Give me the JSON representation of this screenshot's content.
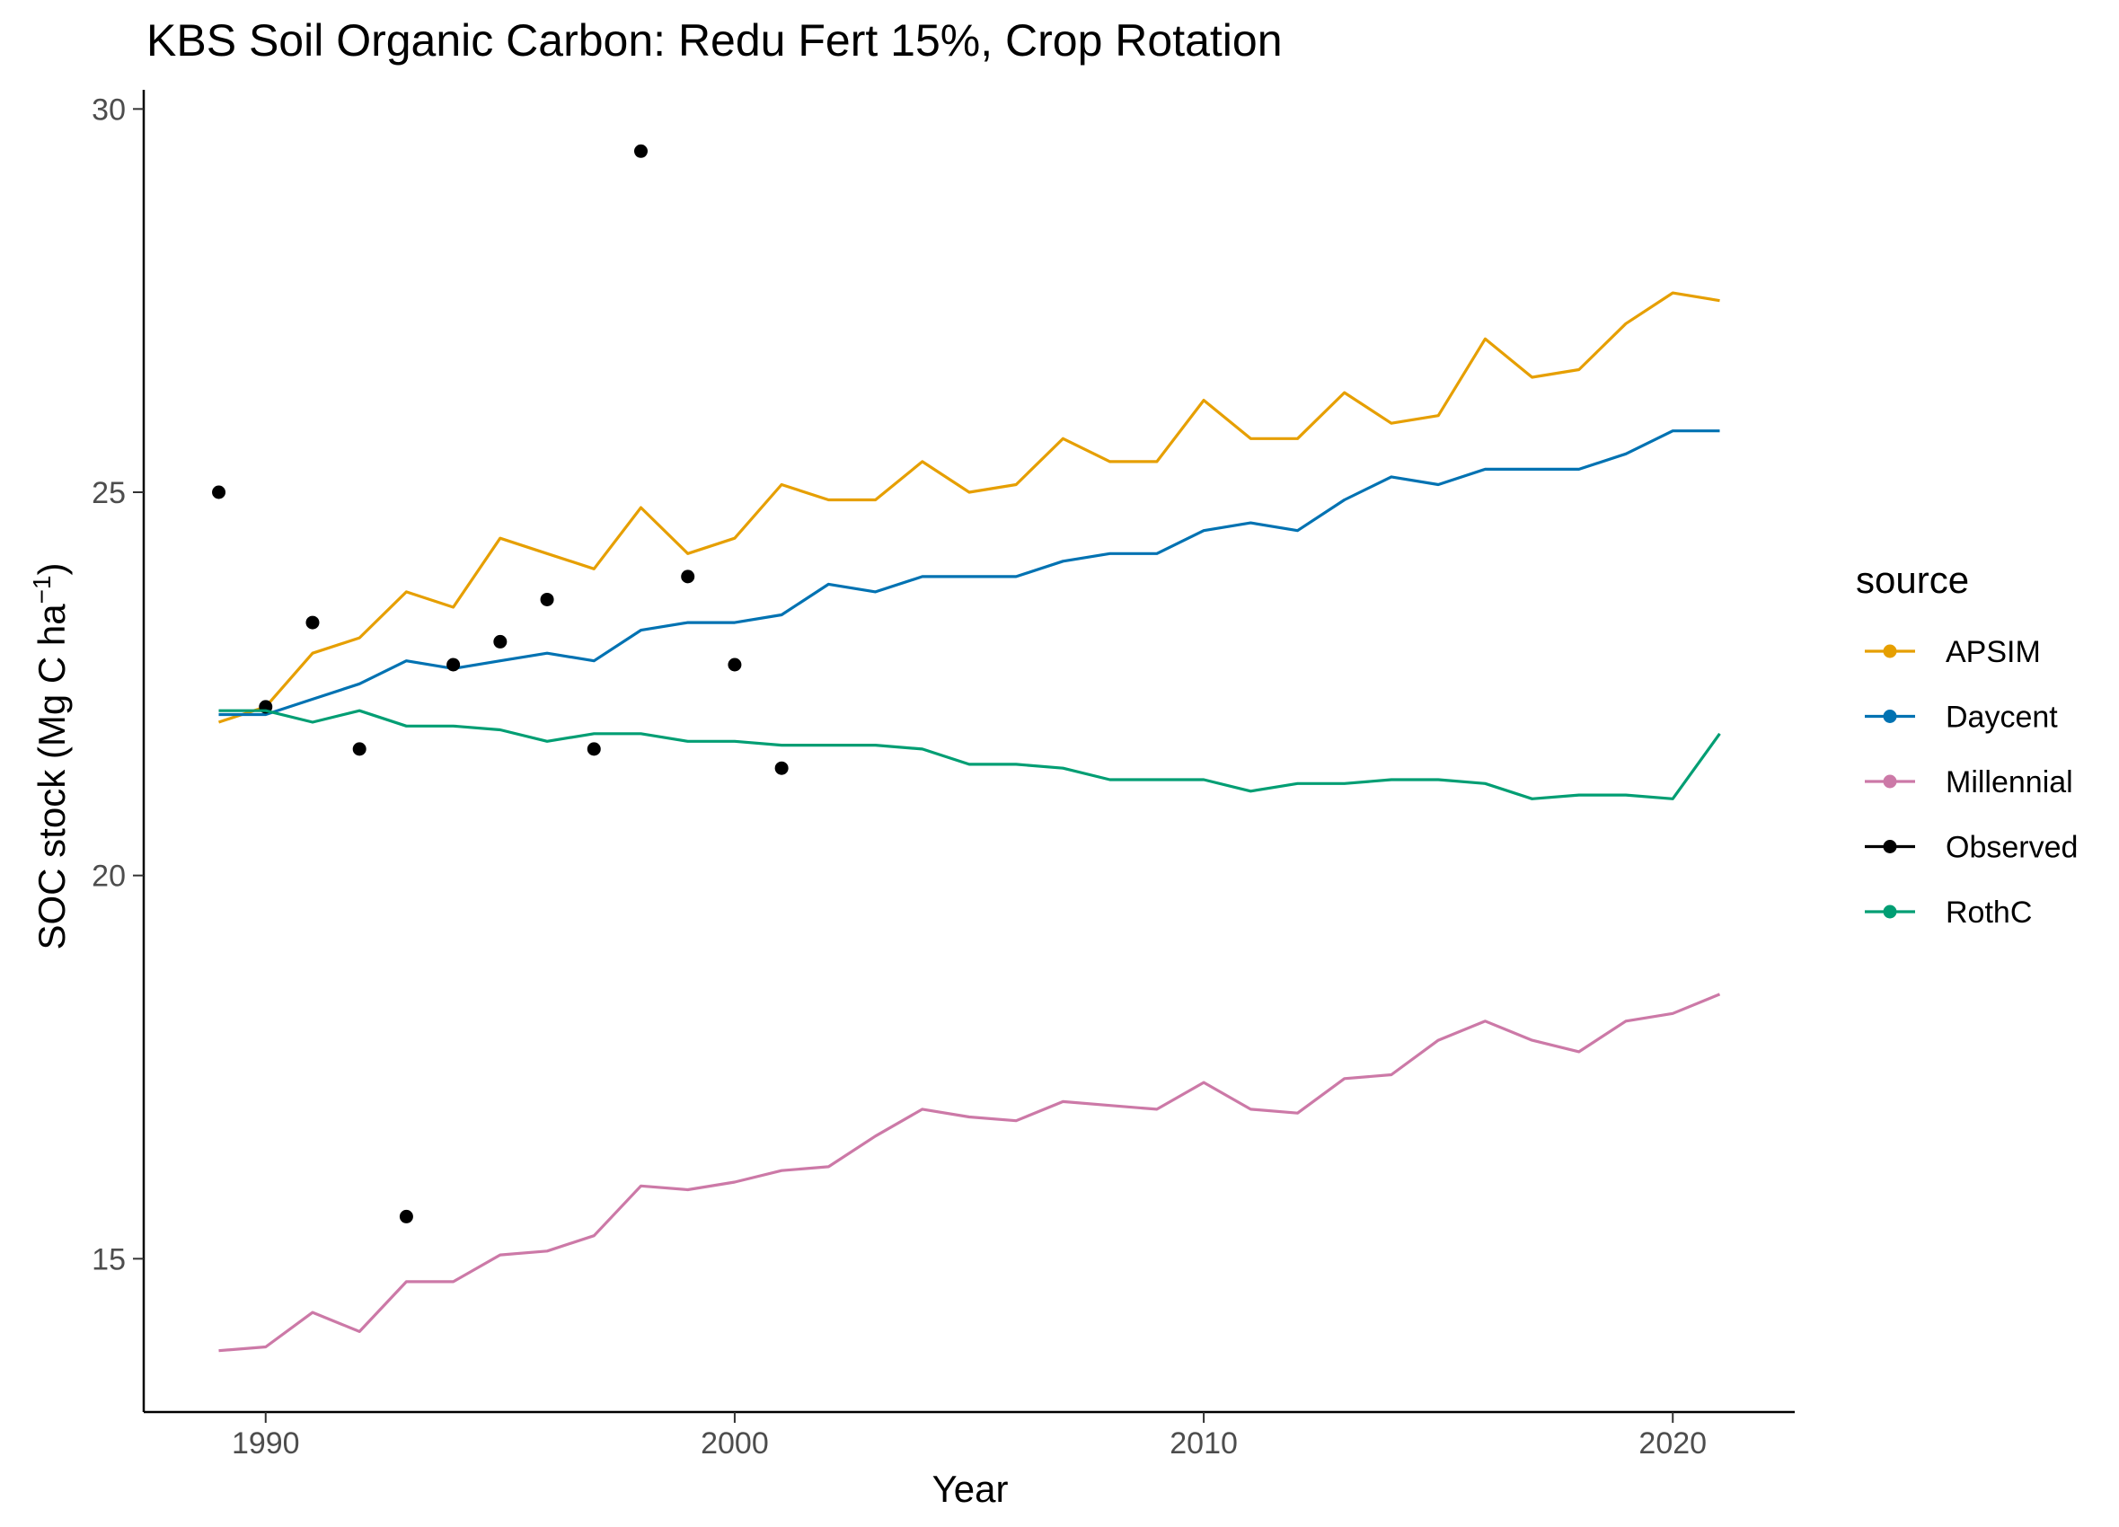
{
  "chart_data": {
    "type": "line",
    "title": "KBS Soil Organic Carbon:  Redu Fert 15%, Crop Rotation",
    "xlabel": "Year",
    "ylabel_main": "SOC stock (Mg C ha",
    "ylabel_sup": "−1",
    "ylabel_close": ")",
    "xlim": [
      1987.4,
      2022.6
    ],
    "ylim": [
      13.0,
      30.25
    ],
    "xticks": [
      1990,
      2000,
      2010,
      2020
    ],
    "yticks": [
      15,
      20,
      25,
      30
    ],
    "grid": false,
    "legend": {
      "title": "source",
      "position": "right",
      "entries": [
        "APSIM",
        "Daycent",
        "Millennial",
        "Observed",
        "RothC"
      ]
    },
    "series": [
      {
        "name": "APSIM",
        "color": "#E69F00",
        "kind": "line",
        "x": [
          1989,
          1990,
          1991,
          1992,
          1993,
          1994,
          1995,
          1996,
          1997,
          1998,
          1999,
          2000,
          2001,
          2002,
          2003,
          2004,
          2005,
          2006,
          2007,
          2008,
          2009,
          2010,
          2011,
          2012,
          2013,
          2014,
          2015,
          2016,
          2017,
          2018,
          2019,
          2020,
          2021
        ],
        "y": [
          22.0,
          22.2,
          22.9,
          23.1,
          23.7,
          23.5,
          24.4,
          24.2,
          24.0,
          24.8,
          24.2,
          24.4,
          25.1,
          24.9,
          24.9,
          25.4,
          25.0,
          25.1,
          25.7,
          25.4,
          25.4,
          26.2,
          25.7,
          25.7,
          26.3,
          25.9,
          26.0,
          27.0,
          26.5,
          26.6,
          27.2,
          27.6,
          27.5
        ]
      },
      {
        "name": "Daycent",
        "color": "#0072B2",
        "kind": "line",
        "x": [
          1989,
          1990,
          1991,
          1992,
          1993,
          1994,
          1995,
          1996,
          1997,
          1998,
          1999,
          2000,
          2001,
          2002,
          2003,
          2004,
          2005,
          2006,
          2007,
          2008,
          2009,
          2010,
          2011,
          2012,
          2013,
          2014,
          2015,
          2016,
          2017,
          2018,
          2019,
          2020,
          2021
        ],
        "y": [
          22.1,
          22.1,
          22.3,
          22.5,
          22.8,
          22.7,
          22.8,
          22.9,
          22.8,
          23.2,
          23.3,
          23.3,
          23.4,
          23.8,
          23.7,
          23.9,
          23.9,
          23.9,
          24.1,
          24.2,
          24.2,
          24.5,
          24.6,
          24.5,
          24.9,
          25.2,
          25.1,
          25.3,
          25.3,
          25.3,
          25.5,
          25.8,
          25.8
        ]
      },
      {
        "name": "Millennial",
        "color": "#CC79A7",
        "kind": "line",
        "x": [
          1989,
          1990,
          1991,
          1992,
          1993,
          1994,
          1995,
          1996,
          1997,
          1998,
          1999,
          2000,
          2001,
          2002,
          2003,
          2004,
          2005,
          2006,
          2007,
          2008,
          2009,
          2010,
          2011,
          2012,
          2013,
          2014,
          2015,
          2016,
          2017,
          2018,
          2019,
          2020,
          2021
        ],
        "y": [
          13.8,
          13.85,
          14.3,
          14.05,
          14.7,
          14.7,
          15.05,
          15.1,
          15.3,
          15.95,
          15.9,
          16.0,
          16.15,
          16.2,
          16.6,
          16.95,
          16.85,
          16.8,
          17.05,
          17.0,
          16.95,
          17.3,
          16.95,
          16.9,
          17.35,
          17.4,
          17.85,
          18.1,
          17.85,
          17.7,
          18.1,
          18.2,
          18.45
        ]
      },
      {
        "name": "Observed",
        "color": "#000000",
        "kind": "points",
        "x": [
          1989,
          1990,
          1991,
          1992,
          1993,
          1994,
          1995,
          1996,
          1997,
          1998,
          1999,
          2000,
          2001
        ],
        "y": [
          25.0,
          22.2,
          23.3,
          21.65,
          15.55,
          22.75,
          23.05,
          23.6,
          21.65,
          29.45,
          23.9,
          22.75,
          21.4
        ]
      },
      {
        "name": "RothC",
        "color": "#009E73",
        "kind": "line",
        "x": [
          1989,
          1990,
          1991,
          1992,
          1993,
          1994,
          1995,
          1996,
          1997,
          1998,
          1999,
          2000,
          2001,
          2002,
          2003,
          2004,
          2005,
          2006,
          2007,
          2008,
          2009,
          2010,
          2011,
          2012,
          2013,
          2014,
          2015,
          2016,
          2017,
          2018,
          2019,
          2020,
          2021
        ],
        "y": [
          22.15,
          22.15,
          22.0,
          22.15,
          21.95,
          21.95,
          21.9,
          21.75,
          21.85,
          21.85,
          21.75,
          21.75,
          21.7,
          21.7,
          21.7,
          21.65,
          21.45,
          21.45,
          21.4,
          21.25,
          21.25,
          21.25,
          21.1,
          21.2,
          21.2,
          21.25,
          21.25,
          21.2,
          21.0,
          21.05,
          21.05,
          21.0,
          21.85
        ]
      }
    ]
  }
}
